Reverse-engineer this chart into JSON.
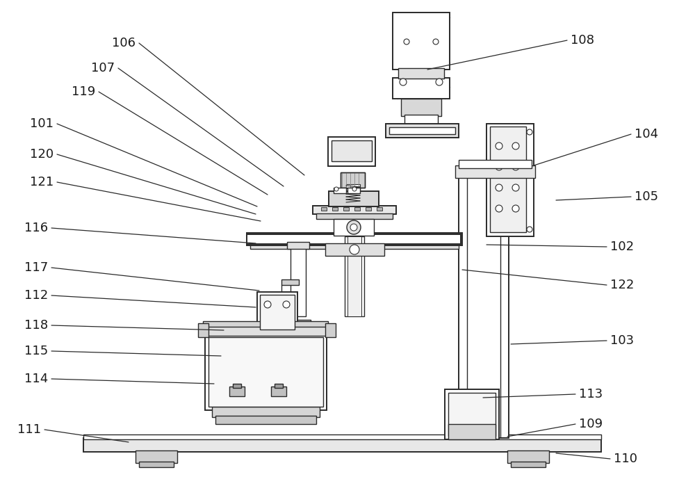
{
  "bg_color": "#ffffff",
  "line_color": "#2a2a2a",
  "label_color": "#1a1a1a",
  "figsize": [
    10.0,
    7.25
  ],
  "dpi": 100,
  "annotations": [
    [
      "108",
      838,
      58,
      615,
      100
    ],
    [
      "104",
      930,
      193,
      768,
      238
    ],
    [
      "105",
      930,
      283,
      800,
      288
    ],
    [
      "102",
      895,
      355,
      700,
      352
    ],
    [
      "122",
      895,
      410,
      665,
      388
    ],
    [
      "103",
      895,
      490,
      735,
      495
    ],
    [
      "113",
      850,
      567,
      695,
      572
    ],
    [
      "109",
      850,
      610,
      730,
      628
    ],
    [
      "110",
      900,
      660,
      800,
      652
    ],
    [
      "111",
      42,
      618,
      185,
      636
    ],
    [
      "106",
      178,
      62,
      438,
      252
    ],
    [
      "107",
      148,
      98,
      408,
      268
    ],
    [
      "119",
      120,
      132,
      385,
      280
    ],
    [
      "101",
      60,
      178,
      370,
      297
    ],
    [
      "120",
      60,
      222,
      368,
      308
    ],
    [
      "121",
      60,
      262,
      375,
      318
    ],
    [
      "116",
      52,
      328,
      368,
      350
    ],
    [
      "117",
      52,
      385,
      373,
      418
    ],
    [
      "112",
      52,
      425,
      368,
      442
    ],
    [
      "118",
      52,
      468,
      322,
      475
    ],
    [
      "115",
      52,
      505,
      318,
      512
    ],
    [
      "114",
      52,
      545,
      308,
      552
    ]
  ]
}
